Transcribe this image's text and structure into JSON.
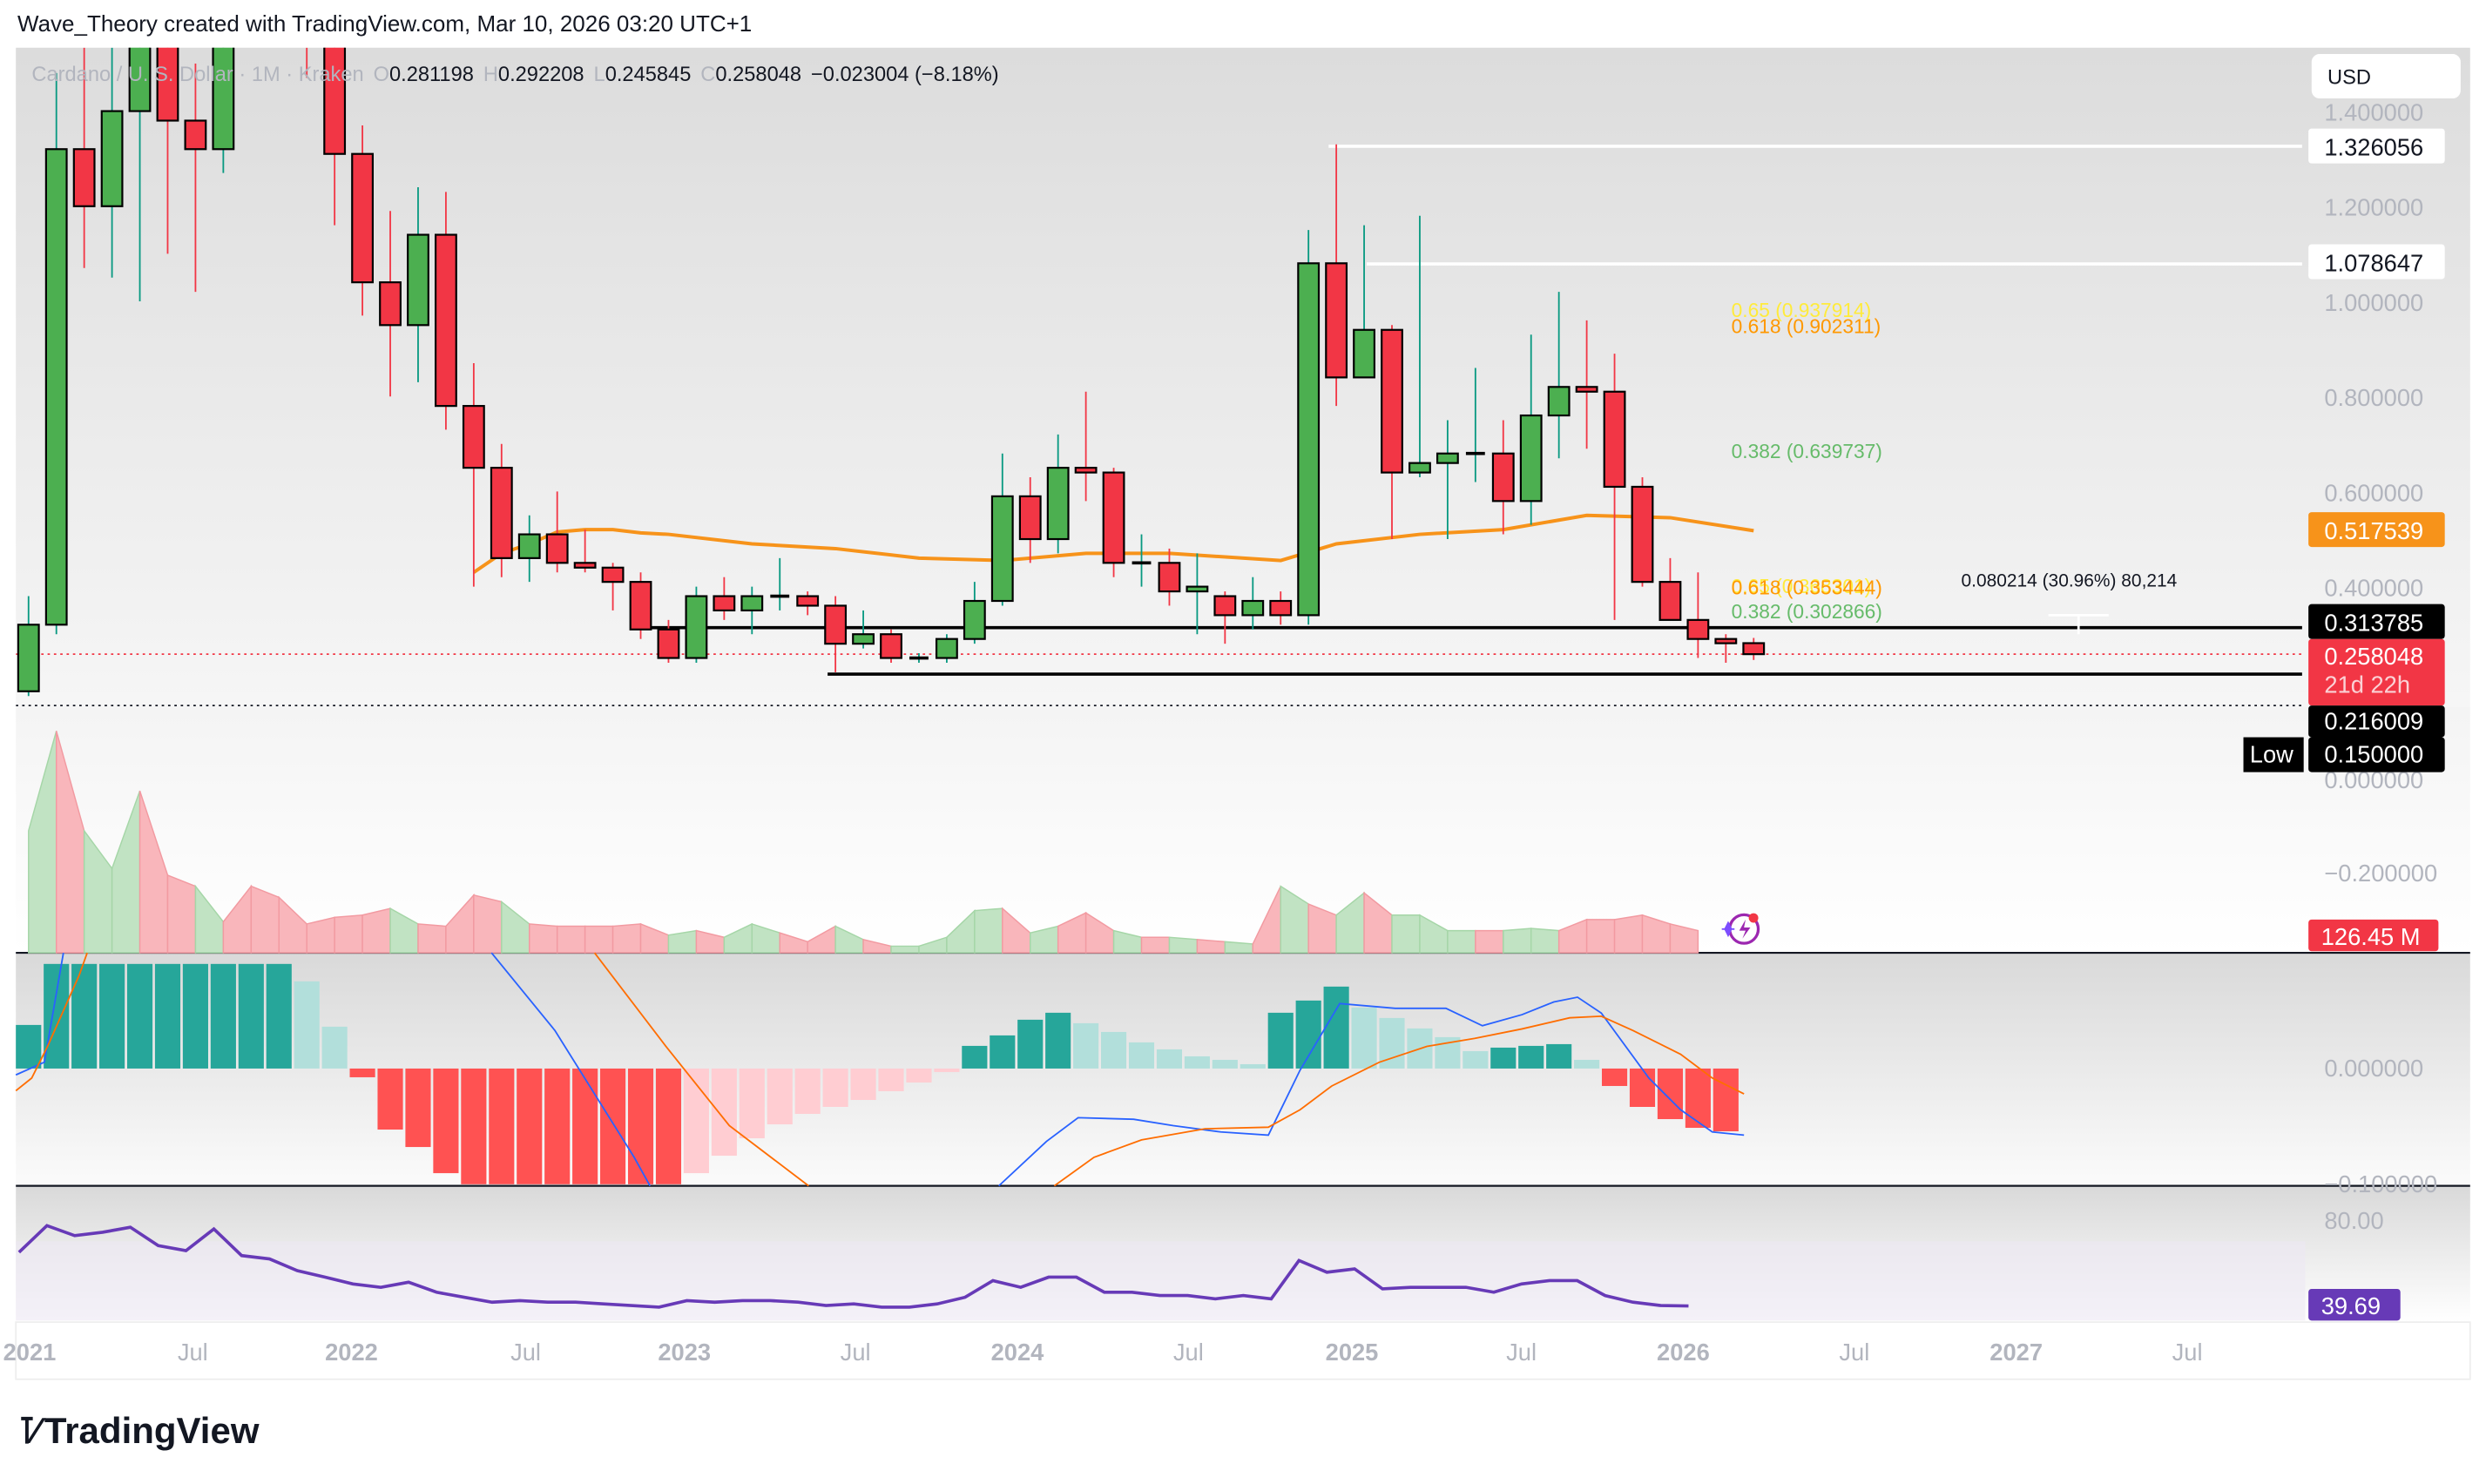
{
  "header": {
    "credit": "Wave_Theory created with TradingView.com, Mar 10, 2026 03:20 UTC+1"
  },
  "legend": {
    "symbol": "Cardano / U. S. Dollar · 1M · Kraken",
    "o_label": "O",
    "o": "0.281198",
    "h_label": "H",
    "h": "0.292208",
    "l_label": "L",
    "l": "0.245845",
    "c_label": "C",
    "c": "0.258048",
    "change": "−0.023004 (−8.18%)"
  },
  "currency_button": "USD",
  "price_axis": {
    "ticks": [
      "1.400000",
      "1.200000",
      "1.000000",
      "0.800000",
      "0.600000",
      "0.400000",
      "0.000000"
    ],
    "labels": {
      "level_high": "1.326056",
      "level_mid": "1.078647",
      "ma": "0.517539",
      "support": "0.313785",
      "last": "0.258048",
      "countdown": "21d 22h",
      "level_low": "0.216009",
      "low_tag": "Low",
      "low": "0.150000"
    }
  },
  "fib_labels": {
    "upper_065": "0.65 (0.937914)",
    "upper_0618": "0.618 (0.902311)",
    "upper_0382": "0.382 (0.639737)",
    "lower_065": "0.65 (0.368301)",
    "lower_0618": "0.618 (0.353444)",
    "lower_0382": "0.382 (0.302866)"
  },
  "measure_label": "0.080214 (30.96%) 80,214",
  "volume_axis": {
    "tick": "−0.200000",
    "value": "126.45 M"
  },
  "macd_axis": {
    "zero": "0.000000",
    "neg": "−0.100000"
  },
  "rsi_axis": {
    "tick": "80.00",
    "value": "39.69"
  },
  "time_axis": [
    "2021",
    "Jul",
    "2022",
    "Jul",
    "2023",
    "Jul",
    "2024",
    "Jul",
    "2025",
    "Jul",
    "2026",
    "Jul",
    "2027",
    "Jul"
  ],
  "branding": {
    "name": "TradingView"
  },
  "colors": {
    "up": "#4caf50",
    "down": "#f23645",
    "ma": "#f7931a",
    "macd_line": "#2962ff",
    "signal_line": "#ff6d00",
    "rsi": "#673ab7",
    "hist_up_strong": "#26a69a",
    "hist_up_weak": "#b2dfdb",
    "hist_down_strong": "#ff5252",
    "hist_down_weak": "#ffcdd2"
  },
  "chart_data": {
    "type": "candlestick",
    "title": "Cardano / U.S. Dollar · 1M · Kraken",
    "interval": "1M",
    "ylim": [
      0,
      1.45
    ],
    "candles": [
      {
        "t": "2021-01",
        "o": 0.18,
        "h": 0.38,
        "l": 0.17,
        "c": 0.32
      },
      {
        "t": "2021-02",
        "o": 0.32,
        "h": 1.48,
        "l": 0.3,
        "c": 1.32
      },
      {
        "t": "2021-03",
        "o": 1.32,
        "h": 1.55,
        "l": 1.07,
        "c": 1.2
      },
      {
        "t": "2021-04",
        "o": 1.2,
        "h": 1.62,
        "l": 1.05,
        "c": 1.4
      },
      {
        "t": "2021-05",
        "o": 1.4,
        "h": 2.47,
        "l": 1.0,
        "c": 1.83
      },
      {
        "t": "2021-06",
        "o": 1.83,
        "h": 1.92,
        "l": 1.1,
        "c": 1.38
      },
      {
        "t": "2021-07",
        "o": 1.38,
        "h": 1.5,
        "l": 1.02,
        "c": 1.32
      },
      {
        "t": "2021-08",
        "o": 1.32,
        "h": 2.96,
        "l": 1.27,
        "c": 2.85
      },
      {
        "t": "2021-09",
        "o": 2.85,
        "h": 3.1,
        "l": 1.95,
        "c": 2.22
      },
      {
        "t": "2021-10",
        "o": 2.22,
        "h": 2.34,
        "l": 1.88,
        "c": 2.18
      },
      {
        "t": "2021-11",
        "o": 2.18,
        "h": 2.46,
        "l": 1.47,
        "c": 1.55
      },
      {
        "t": "2021-12",
        "o": 1.55,
        "h": 1.63,
        "l": 1.16,
        "c": 1.31
      },
      {
        "t": "2022-01",
        "o": 1.31,
        "h": 1.37,
        "l": 0.97,
        "c": 1.04
      },
      {
        "t": "2022-02",
        "o": 1.04,
        "h": 1.19,
        "l": 0.8,
        "c": 0.95
      },
      {
        "t": "2022-03",
        "o": 0.95,
        "h": 1.24,
        "l": 0.83,
        "c": 1.14
      },
      {
        "t": "2022-04",
        "o": 1.14,
        "h": 1.23,
        "l": 0.73,
        "c": 0.78
      },
      {
        "t": "2022-05",
        "o": 0.78,
        "h": 0.87,
        "l": 0.4,
        "c": 0.65
      },
      {
        "t": "2022-06",
        "o": 0.65,
        "h": 0.7,
        "l": 0.42,
        "c": 0.46
      },
      {
        "t": "2022-07",
        "o": 0.46,
        "h": 0.55,
        "l": 0.41,
        "c": 0.51
      },
      {
        "t": "2022-08",
        "o": 0.51,
        "h": 0.6,
        "l": 0.43,
        "c": 0.45
      },
      {
        "t": "2022-09",
        "o": 0.45,
        "h": 0.52,
        "l": 0.43,
        "c": 0.44
      },
      {
        "t": "2022-10",
        "o": 0.44,
        "h": 0.45,
        "l": 0.35,
        "c": 0.41
      },
      {
        "t": "2022-11",
        "o": 0.41,
        "h": 0.43,
        "l": 0.29,
        "c": 0.31
      },
      {
        "t": "2022-12",
        "o": 0.31,
        "h": 0.33,
        "l": 0.24,
        "c": 0.25
      },
      {
        "t": "2023-01",
        "o": 0.25,
        "h": 0.4,
        "l": 0.24,
        "c": 0.38
      },
      {
        "t": "2023-02",
        "o": 0.38,
        "h": 0.42,
        "l": 0.33,
        "c": 0.35
      },
      {
        "t": "2023-03",
        "o": 0.35,
        "h": 0.4,
        "l": 0.3,
        "c": 0.38
      },
      {
        "t": "2023-04",
        "o": 0.38,
        "h": 0.46,
        "l": 0.35,
        "c": 0.38
      },
      {
        "t": "2023-05",
        "o": 0.38,
        "h": 0.39,
        "l": 0.34,
        "c": 0.36
      },
      {
        "t": "2023-06",
        "o": 0.36,
        "h": 0.38,
        "l": 0.22,
        "c": 0.28
      },
      {
        "t": "2023-07",
        "o": 0.28,
        "h": 0.35,
        "l": 0.27,
        "c": 0.3
      },
      {
        "t": "2023-08",
        "o": 0.3,
        "h": 0.31,
        "l": 0.24,
        "c": 0.25
      },
      {
        "t": "2023-09",
        "o": 0.25,
        "h": 0.26,
        "l": 0.24,
        "c": 0.25
      },
      {
        "t": "2023-10",
        "o": 0.25,
        "h": 0.3,
        "l": 0.24,
        "c": 0.29
      },
      {
        "t": "2023-11",
        "o": 0.29,
        "h": 0.41,
        "l": 0.28,
        "c": 0.37
      },
      {
        "t": "2023-12",
        "o": 0.37,
        "h": 0.68,
        "l": 0.36,
        "c": 0.59
      },
      {
        "t": "2024-01",
        "o": 0.59,
        "h": 0.63,
        "l": 0.45,
        "c": 0.5
      },
      {
        "t": "2024-02",
        "o": 0.5,
        "h": 0.72,
        "l": 0.47,
        "c": 0.65
      },
      {
        "t": "2024-03",
        "o": 0.65,
        "h": 0.81,
        "l": 0.58,
        "c": 0.64
      },
      {
        "t": "2024-04",
        "o": 0.64,
        "h": 0.65,
        "l": 0.42,
        "c": 0.45
      },
      {
        "t": "2024-05",
        "o": 0.45,
        "h": 0.51,
        "l": 0.4,
        "c": 0.45
      },
      {
        "t": "2024-06",
        "o": 0.45,
        "h": 0.48,
        "l": 0.36,
        "c": 0.39
      },
      {
        "t": "2024-07",
        "o": 0.39,
        "h": 0.47,
        "l": 0.3,
        "c": 0.4
      },
      {
        "t": "2024-08",
        "o": 0.38,
        "h": 0.39,
        "l": 0.28,
        "c": 0.34
      },
      {
        "t": "2024-09",
        "o": 0.34,
        "h": 0.42,
        "l": 0.31,
        "c": 0.37
      },
      {
        "t": "2024-10",
        "o": 0.37,
        "h": 0.39,
        "l": 0.32,
        "c": 0.34
      },
      {
        "t": "2024-11",
        "o": 0.34,
        "h": 1.15,
        "l": 0.32,
        "c": 1.08
      },
      {
        "t": "2024-12",
        "o": 1.08,
        "h": 1.33,
        "l": 0.78,
        "c": 0.84
      },
      {
        "t": "2025-01",
        "o": 0.84,
        "h": 1.16,
        "l": 0.84,
        "c": 0.94
      },
      {
        "t": "2025-02",
        "o": 0.94,
        "h": 0.95,
        "l": 0.5,
        "c": 0.64
      },
      {
        "t": "2025-03",
        "o": 0.64,
        "h": 1.18,
        "l": 0.63,
        "c": 0.66
      },
      {
        "t": "2025-04",
        "o": 0.66,
        "h": 0.75,
        "l": 0.5,
        "c": 0.68
      },
      {
        "t": "2025-05",
        "o": 0.68,
        "h": 0.86,
        "l": 0.62,
        "c": 0.68
      },
      {
        "t": "2025-06",
        "o": 0.68,
        "h": 0.75,
        "l": 0.51,
        "c": 0.58
      },
      {
        "t": "2025-07",
        "o": 0.58,
        "h": 0.93,
        "l": 0.53,
        "c": 0.76
      },
      {
        "t": "2025-08",
        "o": 0.76,
        "h": 1.02,
        "l": 0.67,
        "c": 0.82
      },
      {
        "t": "2025-09",
        "o": 0.82,
        "h": 0.96,
        "l": 0.69,
        "c": 0.81
      },
      {
        "t": "2025-10",
        "o": 0.81,
        "h": 0.89,
        "l": 0.33,
        "c": 0.61
      },
      {
        "t": "2025-11",
        "o": 0.61,
        "h": 0.63,
        "l": 0.4,
        "c": 0.41
      },
      {
        "t": "2025-12",
        "o": 0.41,
        "h": 0.46,
        "l": 0.33,
        "c": 0.33
      },
      {
        "t": "2026-01",
        "o": 0.33,
        "h": 0.43,
        "l": 0.25,
        "c": 0.29
      },
      {
        "t": "2026-02",
        "o": 0.29,
        "h": 0.3,
        "l": 0.24,
        "c": 0.281
      },
      {
        "t": "2026-03",
        "o": 0.281198,
        "h": 0.292208,
        "l": 0.245845,
        "c": 0.258048
      }
    ],
    "ma_line": [
      {
        "t": "2022-05",
        "v": 0.43
      },
      {
        "t": "2022-06",
        "v": 0.47
      },
      {
        "t": "2022-07",
        "v": 0.49
      },
      {
        "t": "2022-08",
        "v": 0.515
      },
      {
        "t": "2022-09",
        "v": 0.52
      },
      {
        "t": "2022-10",
        "v": 0.52
      },
      {
        "t": "2022-11",
        "v": 0.513
      },
      {
        "t": "2022-12",
        "v": 0.51
      },
      {
        "t": "2023-03",
        "v": 0.49
      },
      {
        "t": "2023-06",
        "v": 0.48
      },
      {
        "t": "2023-09",
        "v": 0.46
      },
      {
        "t": "2023-12",
        "v": 0.455
      },
      {
        "t": "2024-03",
        "v": 0.47
      },
      {
        "t": "2024-06",
        "v": 0.47
      },
      {
        "t": "2024-10",
        "v": 0.455
      },
      {
        "t": "2024-12",
        "v": 0.49
      },
      {
        "t": "2025-03",
        "v": 0.51
      },
      {
        "t": "2025-06",
        "v": 0.52
      },
      {
        "t": "2025-09",
        "v": 0.55
      },
      {
        "t": "2025-12",
        "v": 0.545
      },
      {
        "t": "2026-03",
        "v": 0.517539
      }
    ],
    "horizontal_levels": [
      1.326056,
      1.078647,
      0.313785,
      0.216009
    ],
    "fibonacci": [
      {
        "ratio": 0.65,
        "value": 0.937914
      },
      {
        "ratio": 0.618,
        "value": 0.902311
      },
      {
        "ratio": 0.382,
        "value": 0.639737
      },
      {
        "ratio": 0.65,
        "value": 0.368301
      },
      {
        "ratio": 0.618,
        "value": 0.353444
      },
      {
        "ratio": 0.382,
        "value": 0.302866
      }
    ],
    "volume": {
      "last": "126.45M"
    },
    "macd_hist": [
      0.025,
      0.06,
      0.06,
      0.06,
      0.06,
      0.06,
      0.06,
      0.06,
      0.06,
      0.06,
      0.05,
      0.024,
      -0.005,
      -0.035,
      -0.045,
      -0.06,
      -0.07,
      -0.07,
      -0.07,
      -0.07,
      -0.07,
      -0.07,
      -0.07,
      -0.07,
      -0.06,
      -0.05,
      -0.04,
      -0.032,
      -0.026,
      -0.022,
      -0.018,
      -0.013,
      -0.008,
      -0.002,
      0.013,
      0.019,
      0.028,
      0.032,
      0.026,
      0.021,
      0.015,
      0.011,
      0.007,
      0.005,
      0.0025,
      0.032,
      0.039,
      0.047,
      0.035,
      0.029,
      0.023,
      0.018,
      0.01,
      0.012,
      0.013,
      0.014,
      0.005,
      -0.01,
      -0.022,
      -0.029,
      -0.034,
      -0.036
    ],
    "rsi": {
      "last": 39.69,
      "tick": 80.0
    }
  }
}
